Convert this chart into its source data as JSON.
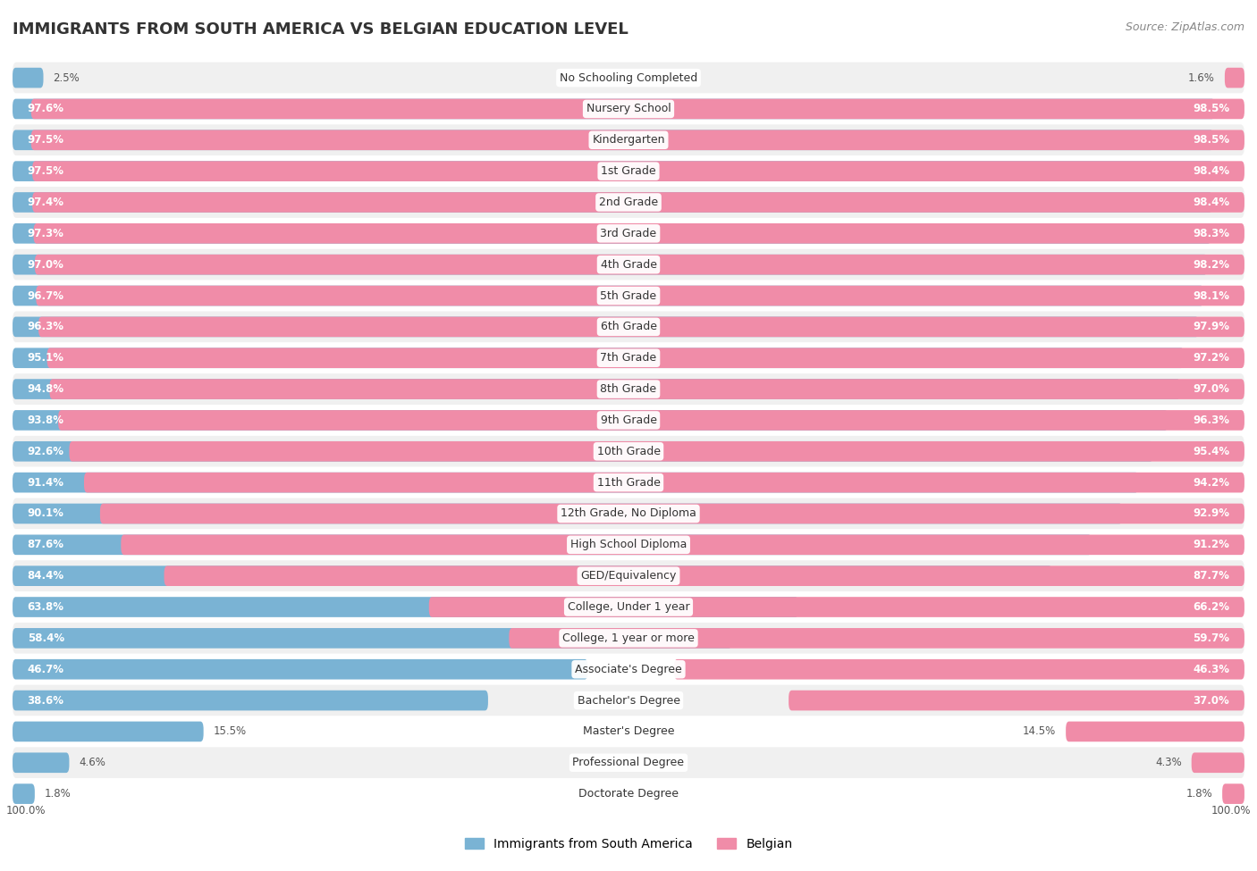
{
  "title": "IMMIGRANTS FROM SOUTH AMERICA VS BELGIAN EDUCATION LEVEL",
  "source": "Source: ZipAtlas.com",
  "categories": [
    "No Schooling Completed",
    "Nursery School",
    "Kindergarten",
    "1st Grade",
    "2nd Grade",
    "3rd Grade",
    "4th Grade",
    "5th Grade",
    "6th Grade",
    "7th Grade",
    "8th Grade",
    "9th Grade",
    "10th Grade",
    "11th Grade",
    "12th Grade, No Diploma",
    "High School Diploma",
    "GED/Equivalency",
    "College, Under 1 year",
    "College, 1 year or more",
    "Associate's Degree",
    "Bachelor's Degree",
    "Master's Degree",
    "Professional Degree",
    "Doctorate Degree"
  ],
  "immigrants_values": [
    2.5,
    97.6,
    97.5,
    97.5,
    97.4,
    97.3,
    97.0,
    96.7,
    96.3,
    95.1,
    94.8,
    93.8,
    92.6,
    91.4,
    90.1,
    87.6,
    84.4,
    63.8,
    58.4,
    46.7,
    38.6,
    15.5,
    4.6,
    1.8
  ],
  "belgian_values": [
    1.6,
    98.5,
    98.5,
    98.4,
    98.4,
    98.3,
    98.2,
    98.1,
    97.9,
    97.2,
    97.0,
    96.3,
    95.4,
    94.2,
    92.9,
    91.2,
    87.7,
    66.2,
    59.7,
    46.3,
    37.0,
    14.5,
    4.3,
    1.8
  ],
  "immigrant_color": "#7ab3d4",
  "belgian_color": "#f08ca8",
  "background_color": "#ffffff",
  "row_alt_color": "#f0f0f0",
  "row_white_color": "#ffffff",
  "title_fontsize": 13,
  "label_fontsize": 9,
  "value_fontsize": 8.5,
  "legend_fontsize": 10,
  "bar_inside_threshold": 20
}
